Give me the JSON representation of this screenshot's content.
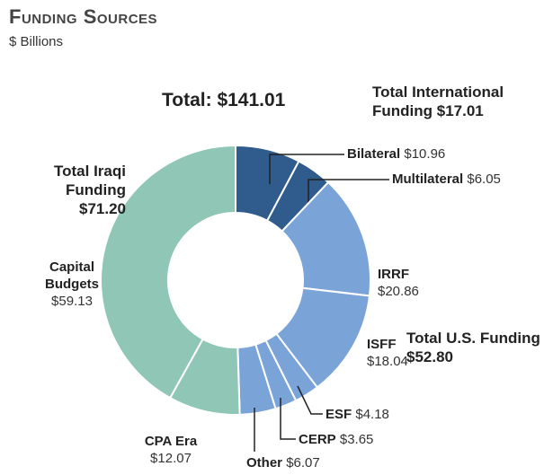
{
  "chart_data": {
    "type": "donut",
    "title": "Funding Sources",
    "subtitle": "$ Billions",
    "total": {
      "label": "Total:",
      "value": 141.01,
      "value_label": "$141.01"
    },
    "categories": [
      "Bilateral",
      "Multilateral",
      "IRRF",
      "ISFF",
      "ESF",
      "CERP",
      "Other",
      "CPA Era",
      "Capital Budgets"
    ],
    "values": [
      10.96,
      6.05,
      20.86,
      18.04,
      4.18,
      3.65,
      6.07,
      12.07,
      59.13
    ],
    "value_labels": [
      "$10.96",
      "$6.05",
      "$20.86",
      "$18.04",
      "$4.18",
      "$3.65",
      "$6.07",
      "$12.07",
      "$59.13"
    ],
    "colors": [
      "#2f5b8d",
      "#2f5b8d",
      "#7aa4d8",
      "#7aa4d8",
      "#7aa4d8",
      "#7aa4d8",
      "#7aa4d8",
      "#8fc6b6",
      "#8fc6b6"
    ],
    "groups": [
      {
        "name": "Total International Funding",
        "value": 17.01,
        "value_label": "$17.01"
      },
      {
        "name": "Total U.S. Funding",
        "value": 52.8,
        "value_label": "$52.80"
      },
      {
        "name": "Total Iraqi Funding",
        "value": 71.2,
        "value_label": "$71.20"
      }
    ]
  }
}
